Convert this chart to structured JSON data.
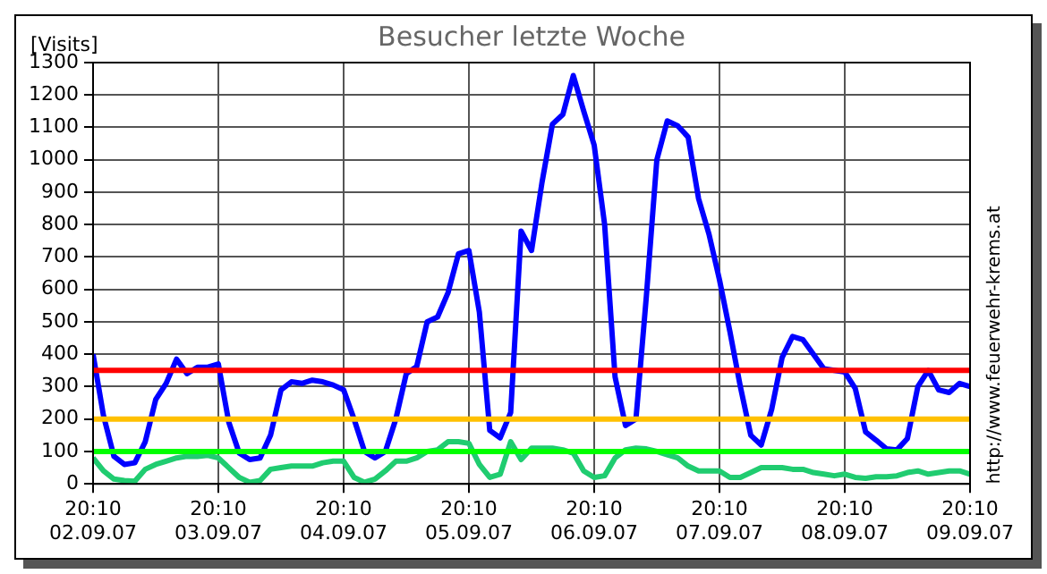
{
  "chart_data": {
    "type": "line",
    "title": "Besucher letzte Woche",
    "ylabel": "[Visits]",
    "annotations": [
      "http://www.feuerwehr-krems.at"
    ],
    "xlim": [
      "--09-02T20:10",
      "--09-09T20:10"
    ],
    "xticks": [
      {
        "value": "--09-02T20:10",
        "label": "20:10\n02.09.07"
      },
      {
        "value": "--09-03T20:10",
        "label": "20:10\n03.09.07"
      },
      {
        "value": "--09-04T20:10",
        "label": "20:10\n04.09.07"
      },
      {
        "value": "--09-05T20:10",
        "label": "20:10\n05.09.07"
      },
      {
        "value": "--09-06T20:10",
        "label": "20:10\n06.09.07"
      },
      {
        "value": "--09-07T20:10",
        "label": "20:10\n07.09.07"
      },
      {
        "value": "--09-08T20:10",
        "label": "20:10\n08.09.07"
      },
      {
        "value": "--09-09T20:10",
        "label": "20:10\n09.09.07"
      }
    ],
    "x": [
      "--09-02T20:10",
      "--09-02T22:10",
      "--09-03T00:10",
      "--09-03T02:10",
      "--09-03T04:10",
      "--09-03T06:10",
      "--09-03T08:10",
      "--09-03T10:10",
      "--09-03T12:10",
      "--09-03T14:10",
      "--09-03T16:10",
      "--09-03T18:10",
      "--09-03T20:10",
      "--09-03T22:10",
      "--09-04T00:10",
      "--09-04T02:10",
      "--09-04T04:10",
      "--09-04T06:10",
      "--09-04T08:10",
      "--09-04T10:10",
      "--09-04T12:10",
      "--09-04T14:10",
      "--09-04T16:10",
      "--09-04T18:10",
      "--09-04T20:10",
      "--09-04T22:10",
      "--09-05T00:10",
      "--09-05T02:10",
      "--09-05T04:10",
      "--09-05T06:10",
      "--09-05T08:10",
      "--09-05T10:10",
      "--09-05T12:10",
      "--09-05T14:10",
      "--09-05T16:10",
      "--09-05T18:10",
      "--09-05T20:10",
      "--09-05T22:10",
      "--09-06T00:10",
      "--09-06T02:10",
      "--09-06T04:10",
      "--09-06T06:10",
      "--09-06T08:10",
      "--09-06T10:10",
      "--09-06T12:10",
      "--09-06T14:10",
      "--09-06T16:10",
      "--09-06T18:10",
      "--09-06T20:10",
      "--09-06T22:10",
      "--09-07T00:10",
      "--09-07T02:10",
      "--09-07T04:10",
      "--09-07T06:10",
      "--09-07T08:10",
      "--09-07T10:10",
      "--09-07T12:10",
      "--09-07T14:10",
      "--09-07T16:10",
      "--09-07T18:10",
      "--09-07T20:10",
      "--09-07T22:10",
      "--09-08T00:10",
      "--09-08T02:10",
      "--09-08T04:10",
      "--09-08T06:10",
      "--09-08T08:10",
      "--09-08T10:10",
      "--09-08T12:10",
      "--09-08T14:10",
      "--09-08T16:10",
      "--09-08T18:10",
      "--09-08T20:10",
      "--09-08T22:10",
      "--09-09T00:10",
      "--09-09T02:10",
      "--09-09T04:10",
      "--09-09T06:10",
      "--09-09T08:10",
      "--09-09T10:10",
      "--09-09T12:10",
      "--09-09T14:10",
      "--09-09T16:10",
      "--09-09T18:10",
      "--09-09T20:10"
    ],
    "ylim": [
      0,
      1300
    ],
    "yticks": [
      0,
      100,
      200,
      300,
      400,
      500,
      600,
      700,
      800,
      900,
      1000,
      1100,
      1200,
      1300
    ],
    "grid": true,
    "legend": false,
    "marker": "none",
    "line_style": "solid",
    "ref_lines": [
      {
        "axis": "y",
        "value": 350,
        "color": "#ff0000"
      },
      {
        "axis": "y",
        "value": 200,
        "color": "#ffc000"
      },
      {
        "axis": "y",
        "value": 100,
        "color": "#00ff00"
      }
    ],
    "series": [
      {
        "color": "#0000ff",
        "values": [
          400,
          210,
          85,
          60,
          65,
          130,
          260,
          310,
          385,
          340,
          360,
          360,
          370,
          190,
          95,
          75,
          80,
          150,
          290,
          315,
          310,
          320,
          315,
          305,
          290,
          200,
          100,
          80,
          100,
          200,
          340,
          362,
          500,
          515,
          590,
          710,
          720,
          530,
          165,
          142,
          220,
          780,
          720,
          930,
          1110,
          1140,
          1260,
          1150,
          1045,
          800,
          330,
          180,
          200,
          580,
          1000,
          1120,
          1105,
          1070,
          880,
          770,
          630,
          470,
          300,
          150,
          120,
          230,
          390,
          455,
          445,
          400,
          355,
          350,
          345,
          295,
          160,
          135,
          108,
          105,
          140,
          300,
          350,
          290,
          282,
          310,
          300
        ]
      },
      {
        "color": "#20cc70",
        "values": [
          80,
          40,
          15,
          10,
          8,
          45,
          60,
          70,
          80,
          85,
          85,
          88,
          80,
          50,
          20,
          5,
          10,
          45,
          50,
          55,
          55,
          55,
          65,
          70,
          70,
          20,
          5,
          15,
          40,
          70,
          70,
          80,
          100,
          105,
          130,
          130,
          125,
          60,
          20,
          30,
          130,
          75,
          110,
          110,
          110,
          105,
          95,
          40,
          20,
          25,
          80,
          105,
          110,
          108,
          100,
          90,
          80,
          55,
          40,
          40,
          40,
          20,
          20,
          35,
          50,
          50,
          50,
          45,
          45,
          35,
          30,
          25,
          30,
          20,
          17,
          22,
          22,
          25,
          35,
          40,
          30,
          35,
          40,
          40,
          30
        ]
      }
    ]
  }
}
